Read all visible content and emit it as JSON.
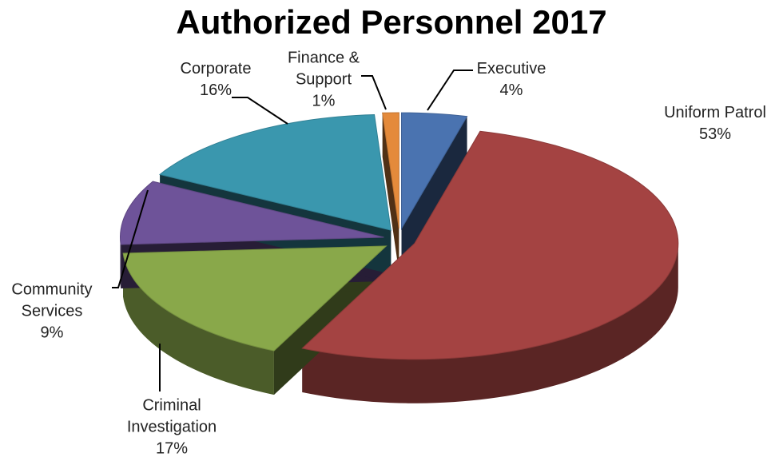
{
  "chart_data": {
    "type": "pie",
    "title": "Authorized Personnel 2017",
    "categories": [
      "Executive",
      "Uniform Patrol",
      "Criminal Investigation",
      "Community Services",
      "Corporate",
      "Finance & Support"
    ],
    "values": [
      4,
      53,
      17,
      9,
      16,
      1
    ],
    "value_labels": [
      "4%",
      "53%",
      "17%",
      "9%",
      "16%",
      "1%"
    ],
    "colors": [
      "#4a73b0",
      "#a44342",
      "#89a84a",
      "#6e5399",
      "#3a97ae",
      "#e48a3b"
    ]
  }
}
